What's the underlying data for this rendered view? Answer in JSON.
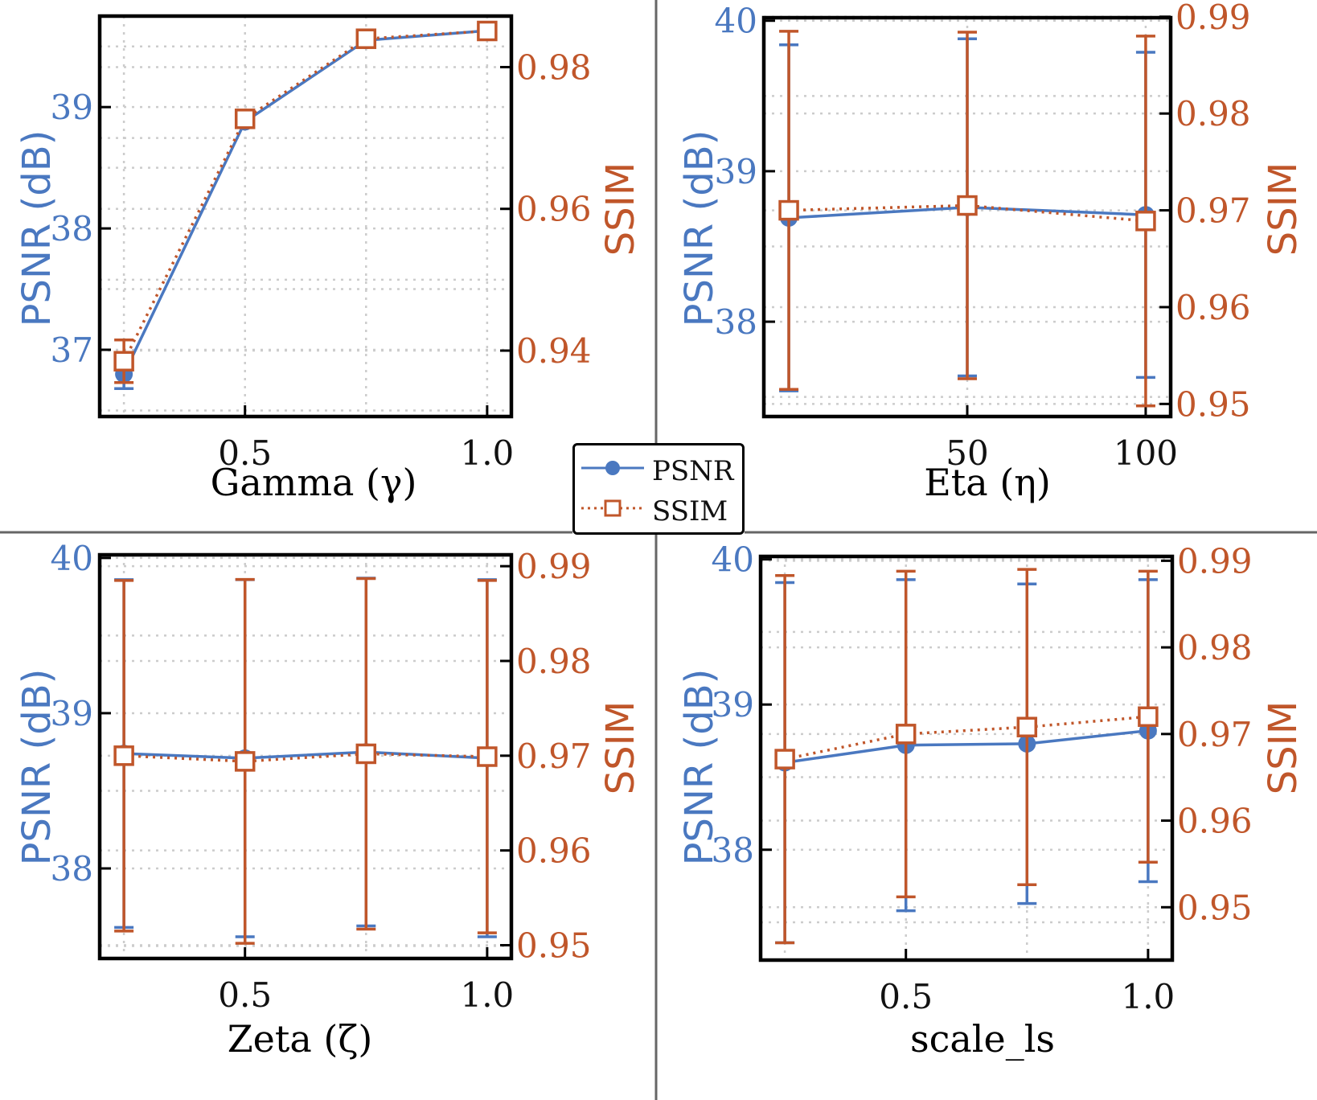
{
  "colors": {
    "psnr": "#4a78c0",
    "ssim": "#c0562a",
    "grid": "#cccccc",
    "axis": "#000000",
    "divider": "#666666"
  },
  "legend": {
    "entries": [
      {
        "label": "PSNR",
        "marker": "circle",
        "line": "solid"
      },
      {
        "label": "SSIM",
        "marker": "square",
        "line": "dotted"
      }
    ]
  },
  "chart_data": [
    {
      "type": "line",
      "xlabel": "Gamma (γ)",
      "ylabel_left": "PSNR (dB)",
      "ylabel_right": "SSIM",
      "xlim": [
        0.2,
        1.05
      ],
      "ylim_left": [
        36.45,
        39.75
      ],
      "ylim_right": [
        0.9307,
        0.9872
      ],
      "x_ticks": [
        0.5,
        1.0
      ],
      "x_tick_labels": [
        "0.5",
        "1.0"
      ],
      "x_minor": [
        0.25,
        0.75
      ],
      "y_left_ticks": [
        37,
        38,
        39
      ],
      "y_left_tick_labels": [
        "37",
        "38",
        "39"
      ],
      "y_right_ticks": [
        0.94,
        0.96,
        0.98
      ],
      "y_right_tick_labels": [
        "0.94",
        "0.96",
        "0.98"
      ],
      "y_left_minor": [
        36.5,
        37.5,
        38.5,
        39.5
      ],
      "y_right_minor": [
        0.95,
        0.97
      ],
      "series": [
        {
          "name": "PSNR",
          "axis": "left",
          "x": [
            0.25,
            0.5,
            0.75,
            1.0
          ],
          "values": [
            36.8,
            38.88,
            39.55,
            39.63
          ],
          "err": [
            0.12,
            0,
            0,
            0
          ]
        },
        {
          "name": "SSIM",
          "axis": "right",
          "x": [
            0.25,
            0.5,
            0.75,
            1.0
          ],
          "values": [
            0.9385,
            0.9727,
            0.984,
            0.9851
          ],
          "err": [
            0.003,
            0,
            0,
            0
          ]
        }
      ]
    },
    {
      "type": "line",
      "xlabel": "Eta (η)",
      "ylabel_left": "PSNR (dB)",
      "ylabel_right": "SSIM",
      "xlim": [
        -7,
        107
      ],
      "ylim_left": [
        37.37,
        40.02
      ],
      "ylim_right": [
        0.9487,
        0.9899
      ],
      "x_ticks": [
        50,
        100
      ],
      "x_tick_labels": [
        "50",
        "100"
      ],
      "x_minor": [],
      "y_left_ticks": [
        38,
        39,
        40
      ],
      "y_left_tick_labels": [
        "38",
        "39",
        "40"
      ],
      "y_right_ticks": [
        0.95,
        0.96,
        0.97,
        0.98,
        0.99
      ],
      "y_right_tick_labels": [
        "0.95",
        "0.96",
        "0.97",
        "0.98",
        "0.99"
      ],
      "y_left_minor": [
        37.5,
        38.5,
        39.5
      ],
      "y_right_minor": [],
      "series": [
        {
          "name": "PSNR",
          "axis": "left",
          "x": [
            0,
            50,
            100
          ],
          "values": [
            38.69,
            38.76,
            38.71
          ],
          "err": [
            1.15,
            1.12,
            1.08
          ]
        },
        {
          "name": "SSIM",
          "axis": "right",
          "x": [
            0,
            50,
            100
          ],
          "values": [
            0.97,
            0.9705,
            0.9689
          ],
          "err": [
            0.0185,
            0.0179,
            0.0191
          ]
        }
      ]
    },
    {
      "type": "line",
      "xlabel": "Zeta (ζ)",
      "ylabel_left": "PSNR (dB)",
      "ylabel_right": "SSIM",
      "xlim": [
        0.2,
        1.05
      ],
      "ylim_left": [
        37.42,
        40.02
      ],
      "ylim_right": [
        0.9486,
        0.9912
      ],
      "x_ticks": [
        0.5,
        1.0
      ],
      "x_tick_labels": [
        "0.5",
        "1.0"
      ],
      "x_minor": [
        0.25,
        0.75
      ],
      "y_left_ticks": [
        38,
        39,
        40
      ],
      "y_left_tick_labels": [
        "38",
        "39",
        "40"
      ],
      "y_right_ticks": [
        0.95,
        0.96,
        0.97,
        0.98,
        0.99
      ],
      "y_right_tick_labels": [
        "0.95",
        "0.96",
        "0.97",
        "0.98",
        "0.99"
      ],
      "y_left_minor": [
        37.5,
        38.5,
        39.5
      ],
      "y_right_minor": [],
      "series": [
        {
          "name": "PSNR",
          "axis": "left",
          "x": [
            0.25,
            0.5,
            0.75,
            1.0
          ],
          "values": [
            38.74,
            38.71,
            38.75,
            38.71
          ],
          "err": [
            1.12,
            1.15,
            1.12,
            1.15
          ]
        },
        {
          "name": "SSIM",
          "axis": "right",
          "x": [
            0.25,
            0.5,
            0.75,
            1.0
          ],
          "values": [
            0.97,
            0.9694,
            0.9702,
            0.9699
          ],
          "err": [
            0.0185,
            0.0192,
            0.0185,
            0.0186
          ]
        }
      ]
    },
    {
      "type": "line",
      "xlabel": "scale_ls",
      "ylabel_left": "PSNR (dB)",
      "ylabel_right": "SSIM",
      "xlim": [
        0.2,
        1.05
      ],
      "ylim_left": [
        37.24,
        40.02
      ],
      "ylim_right": [
        0.9439,
        0.9905
      ],
      "x_ticks": [
        0.5,
        1.0
      ],
      "x_tick_labels": [
        "0.5",
        "1.0"
      ],
      "x_minor": [
        0.25,
        0.75
      ],
      "y_left_ticks": [
        38,
        39,
        40
      ],
      "y_left_tick_labels": [
        "38",
        "39",
        "40"
      ],
      "y_right_ticks": [
        0.95,
        0.96,
        0.97,
        0.98,
        0.99
      ],
      "y_right_tick_labels": [
        "0.95",
        "0.96",
        "0.97",
        "0.98",
        "0.99"
      ],
      "y_left_minor": [
        37.5,
        38.5,
        39.5
      ],
      "y_right_minor": [],
      "series": [
        {
          "name": "PSNR",
          "axis": "left",
          "x": [
            0.25,
            0.5,
            0.75,
            1.0
          ],
          "values": [
            38.6,
            38.72,
            38.73,
            38.82
          ],
          "err": [
            1.24,
            1.14,
            1.1,
            1.04
          ]
        },
        {
          "name": "SSIM",
          "axis": "right",
          "x": [
            0.25,
            0.5,
            0.75,
            1.0
          ],
          "values": [
            0.9671,
            0.97,
            0.9708,
            0.972
          ],
          "err": [
            0.0212,
            0.0188,
            0.0182,
            0.0168
          ]
        }
      ]
    }
  ]
}
